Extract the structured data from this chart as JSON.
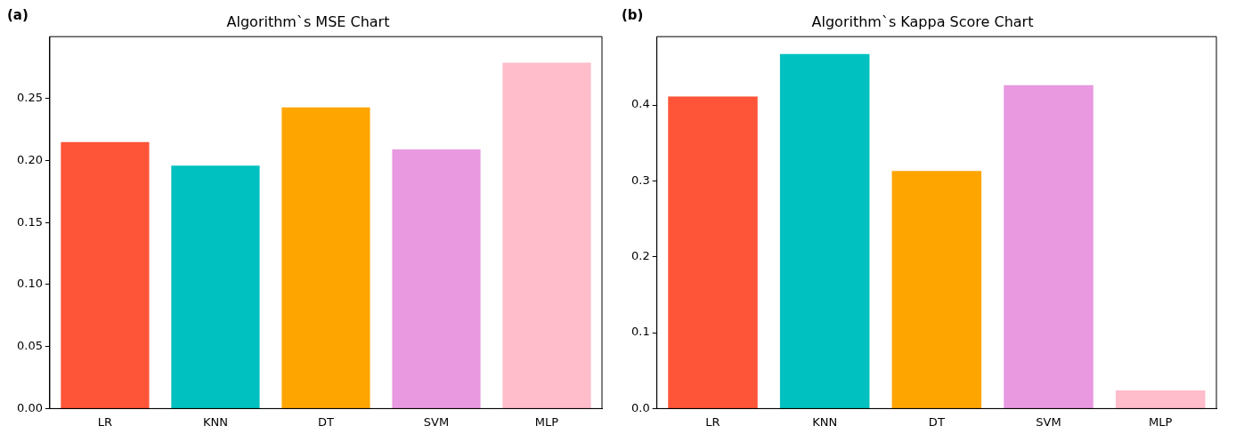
{
  "chart_data": [
    {
      "type": "bar",
      "title": "Algorithm`s MSE Chart",
      "annotations": [
        "(a)"
      ],
      "categories": [
        "LR",
        "KNN",
        "DT",
        "SVM",
        "MLP"
      ],
      "values": [
        0.215,
        0.196,
        0.243,
        0.209,
        0.279
      ],
      "colors": [
        "#fe5438",
        "#00c0c0",
        "#ffa500",
        "#e899e0",
        "#ffbccb"
      ],
      "ylim": [
        0,
        0.3
      ],
      "yticks": [
        {
          "value": 0,
          "label": "0.00"
        },
        0.05,
        {
          "value": 0.1,
          "label": "0.10"
        },
        0.15,
        {
          "value": 0.2,
          "label": "0.20"
        },
        0.25
      ],
      "grid": false,
      "legend": false
    },
    {
      "type": "bar",
      "title": "Algorithm`s Kappa Score Chart",
      "annotations": [
        "(b)"
      ],
      "categories": [
        "LR",
        "KNN",
        "DT",
        "SVM",
        "MLP"
      ],
      "values": [
        0.411,
        0.467,
        0.313,
        0.426,
        0.024
      ],
      "colors": [
        "#fe5438",
        "#00c0c0",
        "#ffa500",
        "#e899e0",
        "#ffbccb"
      ],
      "ylim": [
        0,
        0.49
      ],
      "yticks": [
        {
          "value": 0,
          "label": "0.0"
        },
        0.1,
        0.2,
        0.3,
        0.4
      ],
      "grid": false,
      "legend": false
    }
  ]
}
